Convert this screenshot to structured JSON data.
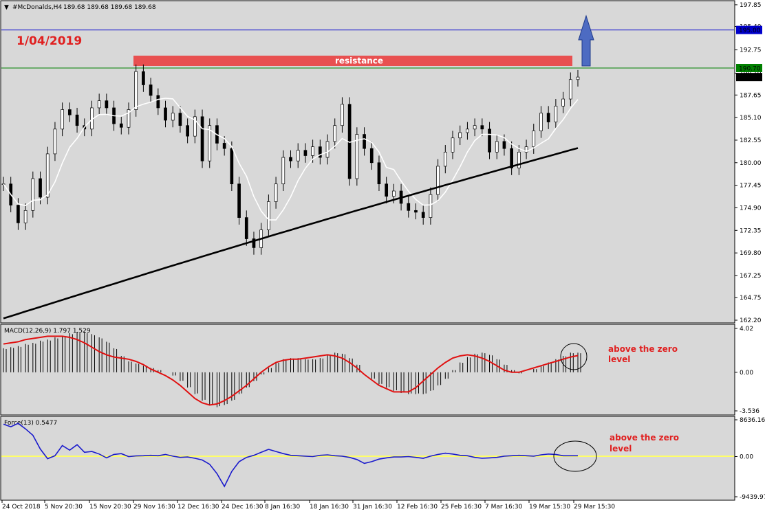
{
  "chart_data": {
    "type": "line",
    "symbol": "#McDonalds,H4",
    "ohlc": "189.68 189.68 189.68 189.68",
    "date_label": "1/04/2019",
    "price_axis": {
      "ylim": [
        162.2,
        198.0
      ],
      "ticks": [
        "197.85",
        "195.40",
        "192.75",
        "190.10",
        "187.65",
        "185.10",
        "182.55",
        "180.00",
        "177.45",
        "174.90",
        "172.35",
        "169.80",
        "167.25",
        "164.75",
        "162.20"
      ]
    },
    "x_ticks": [
      "24 Oct 2018",
      "5 Nov 20:30",
      "15 Nov 20:30",
      "29 Nov 16:30",
      "12 Dec 16:30",
      "24 Dec 16:30",
      "8 Jan 16:30",
      "18 Jan 16:30",
      "31 Jan 16:30",
      "12 Feb 16:30",
      "25 Feb 16:30",
      "7 Mar 16:30",
      "19 Mar 15:30",
      "29 Mar 15:30"
    ],
    "levels": [
      {
        "label": "195.00",
        "value": 195.0,
        "color": "#0000cc"
      },
      {
        "label": "190.70",
        "value": 190.7,
        "color": "#008000"
      },
      {
        "label": "189.68",
        "value": 189.68,
        "color": "#000000"
      }
    ],
    "resistance_label": "resistance",
    "annotation_macd": "above the zero level",
    "annotation_force": "above the zero level",
    "price_series": [
      177.6,
      175.2,
      173.2,
      174.6,
      178.2,
      176.1,
      181.0,
      183.8,
      186.0,
      185.4,
      184.2,
      183.8,
      186.2,
      187.0,
      186.2,
      184.4,
      184.0,
      186.0,
      190.3,
      188.8,
      187.6,
      186.2,
      184.8,
      185.6,
      184.2,
      183.0,
      185.2,
      180.2,
      184.2,
      182.2,
      181.6,
      177.6,
      173.8,
      171.4,
      170.4,
      172.4,
      175.6,
      177.6,
      180.6,
      180.2,
      181.4,
      180.8,
      181.8,
      180.6,
      182.4,
      184.2,
      186.6,
      178.2,
      183.2,
      181.6,
      180.0,
      177.6,
      176.2,
      176.8,
      175.4,
      174.6,
      174.4,
      173.8,
      176.4,
      179.6,
      181.2,
      182.8,
      183.4,
      183.8,
      184.2,
      183.8,
      181.2,
      182.4,
      181.6,
      179.4,
      181.2,
      181.8,
      183.6,
      185.6,
      184.6,
      186.4,
      187.2,
      189.4,
      189.68
    ],
    "macd": {
      "label": "MACD(12,26,9) 1.797 1.529",
      "ticks": [
        "4.02",
        "0.00",
        "-3.536"
      ],
      "ylim": [
        -3.536,
        4.02
      ],
      "histogram": [
        2.2,
        2.3,
        2.4,
        2.6,
        2.7,
        2.9,
        3.0,
        3.2,
        3.3,
        3.6,
        3.7,
        3.7,
        3.5,
        3.2,
        2.8,
        2.2,
        1.5,
        1.0,
        0.8,
        0.6,
        0.4,
        0.2,
        0.0,
        -0.3,
        -0.8,
        -1.4,
        -2.0,
        -2.6,
        -3.0,
        -3.2,
        -3.0,
        -2.6,
        -2.0,
        -1.4,
        -0.8,
        -0.2,
        0.4,
        0.9,
        1.2,
        1.3,
        1.3,
        1.2,
        1.2,
        1.3,
        1.6,
        1.8,
        1.7,
        1.3,
        0.7,
        0.0,
        -0.6,
        -1.1,
        -1.4,
        -1.7,
        -1.9,
        -2.0,
        -2.0,
        -2.0,
        -1.7,
        -1.2,
        -0.6,
        0.2,
        0.9,
        1.4,
        1.7,
        1.8,
        1.6,
        1.2,
        0.7,
        0.2,
        -0.1,
        0.0,
        0.3,
        0.6,
        0.9,
        1.2,
        1.5,
        1.8,
        1.8
      ],
      "signal": [
        2.6,
        2.7,
        2.8,
        3.0,
        3.1,
        3.2,
        3.3,
        3.3,
        3.3,
        3.2,
        3.0,
        2.7,
        2.3,
        1.9,
        1.6,
        1.4,
        1.3,
        1.2,
        1.0,
        0.7,
        0.3,
        0.0,
        -0.3,
        -0.7,
        -1.2,
        -1.8,
        -2.4,
        -2.8,
        -3.0,
        -2.9,
        -2.6,
        -2.2,
        -1.7,
        -1.2,
        -0.6,
        0.0,
        0.5,
        0.9,
        1.1,
        1.2,
        1.2,
        1.3,
        1.4,
        1.5,
        1.6,
        1.5,
        1.3,
        0.9,
        0.4,
        -0.2,
        -0.7,
        -1.2,
        -1.5,
        -1.8,
        -1.8,
        -1.8,
        -1.4,
        -0.8,
        -0.2,
        0.4,
        0.9,
        1.3,
        1.5,
        1.6,
        1.5,
        1.3,
        1.0,
        0.6,
        0.2,
        0.0,
        0.0,
        0.2,
        0.4,
        0.6,
        0.8,
        1.0,
        1.2,
        1.4,
        1.53
      ]
    },
    "force": {
      "label": "Force(13) 0.5477",
      "ticks": [
        "8636.161",
        "0.00",
        "-9439.97"
      ],
      "ylim": [
        -9439.97,
        8636.161
      ],
      "series": [
        7600,
        7000,
        7800,
        6500,
        5000,
        1800,
        -500,
        200,
        2600,
        1500,
        2800,
        1000,
        1200,
        600,
        -300,
        500,
        700,
        0,
        150,
        200,
        300,
        200,
        500,
        100,
        -200,
        -100,
        -400,
        -800,
        -1800,
        -4000,
        -7000,
        -3500,
        -1200,
        -200,
        300,
        1000,
        1700,
        1200,
        700,
        300,
        200,
        100,
        0,
        300,
        400,
        200,
        100,
        -200,
        -700,
        -1600,
        -1200,
        -600,
        -300,
        -100,
        -100,
        0,
        -200,
        -400,
        100,
        500,
        800,
        600,
        300,
        200,
        -200,
        -400,
        -300,
        -200,
        100,
        200,
        300,
        200,
        100,
        400,
        600,
        500,
        200,
        200,
        200
      ]
    }
  }
}
